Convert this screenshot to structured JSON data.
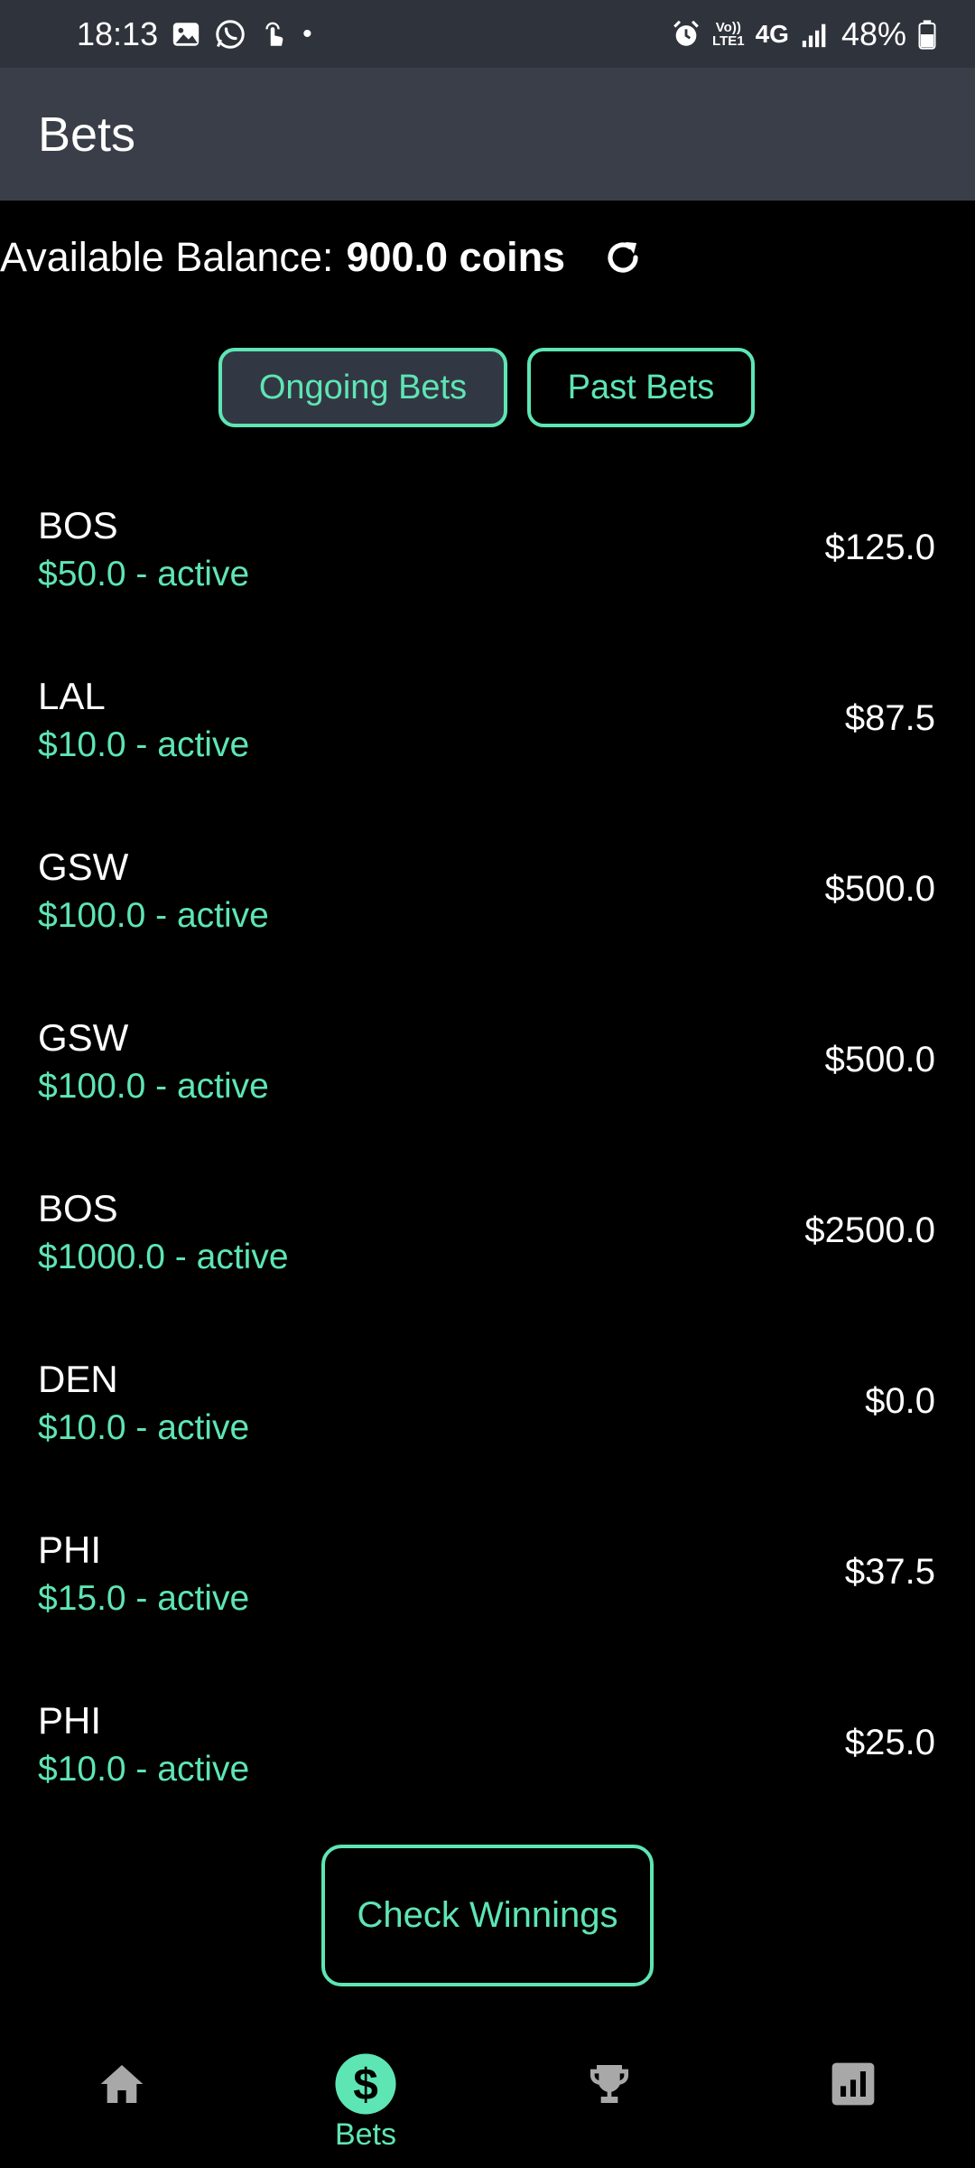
{
  "status_bar": {
    "time": "18:13",
    "dot": "•",
    "volte_line1": "Vo))",
    "volte_line2": "LTE1",
    "network": "4G",
    "battery": "48%"
  },
  "app_bar": {
    "title": "Bets"
  },
  "balance": {
    "label": "Available Balance:",
    "value": "900.0 coins"
  },
  "tabs": [
    {
      "label": "Ongoing Bets",
      "selected": true
    },
    {
      "label": "Past Bets",
      "selected": false
    }
  ],
  "bets": [
    {
      "team": "BOS",
      "detail": "$50.0 - active",
      "payout": "$125.0"
    },
    {
      "team": "LAL",
      "detail": "$10.0 - active",
      "payout": "$87.5"
    },
    {
      "team": "GSW",
      "detail": "$100.0 - active",
      "payout": "$500.0"
    },
    {
      "team": "GSW",
      "detail": "$100.0 - active",
      "payout": "$500.0"
    },
    {
      "team": "BOS",
      "detail": "$1000.0 - active",
      "payout": "$2500.0"
    },
    {
      "team": "DEN",
      "detail": "$10.0 - active",
      "payout": "$0.0"
    },
    {
      "team": "PHI",
      "detail": "$15.0 - active",
      "payout": "$37.5"
    },
    {
      "team": "PHI",
      "detail": "$10.0 - active",
      "payout": "$25.0"
    }
  ],
  "check_button": {
    "label": "Check Winnings"
  },
  "bottom_nav": [
    {
      "icon": "home-icon",
      "label": "",
      "active": false
    },
    {
      "icon": "dollar-icon",
      "label": "Bets",
      "active": true
    },
    {
      "icon": "trophy-icon",
      "label": "",
      "active": false
    },
    {
      "icon": "chart-icon",
      "label": "",
      "active": false
    }
  ],
  "colors": {
    "accent": "#5ee5b4",
    "background": "#000000",
    "app_bar": "#3a3e48",
    "status_bar": "#2f333b",
    "inactive_icon": "#a8a8a8"
  }
}
